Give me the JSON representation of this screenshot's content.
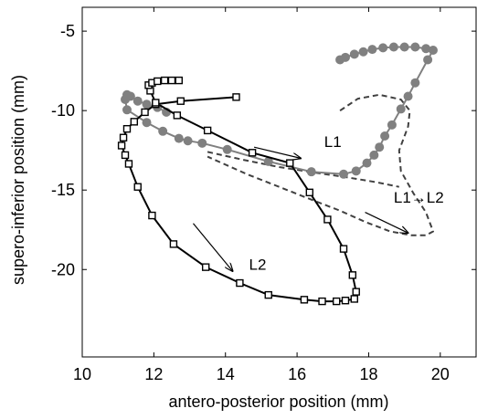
{
  "chart_data": {
    "type": "line",
    "xlabel": "antero-posterior position (mm)",
    "ylabel": "supero-inferior position (mm)",
    "xlim": [
      10,
      21
    ],
    "ylim": [
      -25.5,
      -3.5
    ],
    "x_ticks": [
      "10",
      "12",
      "14",
      "16",
      "18",
      "20"
    ],
    "y_ticks": [
      "-5",
      "-10",
      "-15",
      "-20"
    ],
    "x_tick_values": [
      10,
      12,
      14,
      16,
      18,
      20
    ],
    "y_tick_values": [
      -5,
      -10,
      -15,
      -20
    ],
    "grid": false,
    "annotations": [
      {
        "text": "L1",
        "x": 17.0,
        "y": -12.3
      },
      {
        "text": "L1→L2",
        "x": 19.4,
        "y": -15.8
      },
      {
        "text": "L2",
        "x": 14.9,
        "y": -20.0
      }
    ],
    "arrows": [
      {
        "from": [
          14.8,
          -12.3
        ],
        "to": [
          16.1,
          -13.0
        ]
      },
      {
        "from": [
          13.1,
          -17.1
        ],
        "to": [
          14.2,
          -20.1
        ]
      },
      {
        "from": [
          17.9,
          -16.4
        ],
        "to": [
          19.1,
          -17.7
        ]
      }
    ],
    "series": [
      {
        "marker": "circle-filled",
        "color": "#808080",
        "line_style": "solid",
        "x": [
          17.2,
          17.35,
          17.6,
          17.85,
          18.1,
          18.4,
          18.7,
          19.0,
          19.3,
          19.6,
          19.8,
          19.65,
          19.3,
          19.1,
          18.9,
          18.65,
          18.45,
          18.3,
          18.15,
          17.95,
          17.65,
          17.3,
          16.4,
          15.2,
          14.05,
          13.35,
          12.95,
          12.7,
          12.25,
          11.8,
          11.25,
          11.2,
          11.25,
          11.35,
          11.55,
          11.8,
          12.1,
          12.35
        ],
        "y": [
          -6.8,
          -6.65,
          -6.45,
          -6.3,
          -6.15,
          -6.05,
          -6.0,
          -6.0,
          -6.0,
          -6.1,
          -6.2,
          -6.8,
          -8.25,
          -9.1,
          -9.9,
          -10.9,
          -11.6,
          -12.3,
          -12.8,
          -13.3,
          -13.8,
          -14.0,
          -13.85,
          -13.2,
          -12.45,
          -12.05,
          -11.9,
          -11.75,
          -11.3,
          -10.75,
          -9.95,
          -9.3,
          -9.0,
          -9.1,
          -9.4,
          -9.6,
          -9.8,
          -10.1
        ]
      },
      {
        "marker": "square-open",
        "color": "#000000",
        "line_style": "solid",
        "x": [
          14.3,
          12.75,
          12.05,
          11.75,
          11.45,
          11.25,
          11.15,
          11.1,
          11.2,
          11.3,
          11.55,
          11.95,
          12.55,
          13.45,
          14.4,
          15.2,
          16.2,
          16.7,
          17.1,
          17.35,
          17.6,
          17.65,
          17.55,
          17.3,
          16.85,
          16.35,
          15.8,
          14.75,
          13.5,
          12.65,
          12.05,
          11.9,
          11.85,
          11.95,
          12.1,
          12.3,
          12.5,
          12.7
        ],
        "y": [
          -9.15,
          -9.4,
          -9.6,
          -10.1,
          -10.7,
          -11.15,
          -11.7,
          -12.2,
          -12.8,
          -13.35,
          -14.8,
          -16.6,
          -18.4,
          -19.85,
          -20.85,
          -21.6,
          -21.9,
          -22.0,
          -22.0,
          -21.95,
          -21.85,
          -21.4,
          -20.35,
          -18.7,
          -16.85,
          -15.15,
          -13.3,
          -12.65,
          -11.25,
          -10.3,
          -9.5,
          -8.75,
          -8.4,
          -8.25,
          -8.15,
          -8.1,
          -8.1,
          -8.1
        ]
      },
      {
        "marker": "none",
        "color": "#404040",
        "line_style": "dashed",
        "x": [
          17.2,
          17.7,
          18.3,
          18.9,
          19.15,
          19.1,
          18.85,
          18.9,
          19.25,
          19.6,
          19.8,
          19.6,
          19.2,
          18.6,
          17.9,
          17.2,
          16.4,
          15.5,
          14.6,
          13.5
        ],
        "y": [
          -10.0,
          -9.25,
          -9.0,
          -9.3,
          -10.0,
          -11.0,
          -12.5,
          -13.8,
          -15.2,
          -16.4,
          -17.6,
          -17.85,
          -17.85,
          -17.6,
          -17.0,
          -16.3,
          -15.6,
          -14.8,
          -14.0,
          -12.9
        ]
      },
      {
        "marker": "none",
        "color": "#404040",
        "line_style": "dashed",
        "x": [
          13.5,
          14.5,
          15.5,
          16.5,
          17.4,
          18.2,
          18.85
        ],
        "y": [
          -12.6,
          -13.1,
          -13.55,
          -13.9,
          -14.2,
          -14.5,
          -14.8
        ]
      }
    ]
  }
}
